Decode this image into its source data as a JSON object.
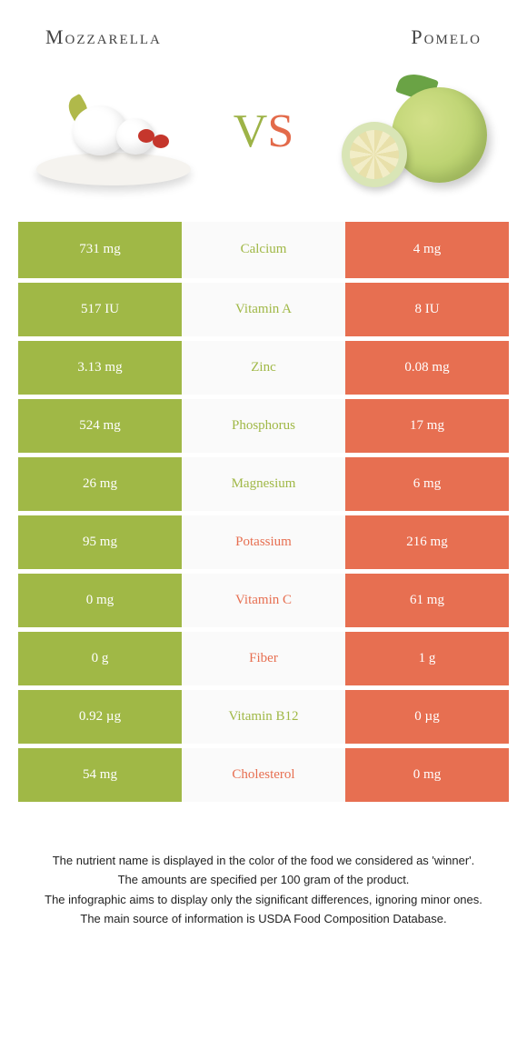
{
  "colors": {
    "left": "#a0b846",
    "right": "#e76f51",
    "mid_bg": "#fafafa"
  },
  "header": {
    "left_title": "Mozzarella",
    "right_title": "Pomelo",
    "vs_v": "V",
    "vs_s": "S"
  },
  "rows": [
    {
      "nutrient": "Calcium",
      "left": "731 mg",
      "right": "4 mg",
      "winner": "left"
    },
    {
      "nutrient": "Vitamin A",
      "left": "517 IU",
      "right": "8 IU",
      "winner": "left"
    },
    {
      "nutrient": "Zinc",
      "left": "3.13 mg",
      "right": "0.08 mg",
      "winner": "left"
    },
    {
      "nutrient": "Phosphorus",
      "left": "524 mg",
      "right": "17 mg",
      "winner": "left"
    },
    {
      "nutrient": "Magnesium",
      "left": "26 mg",
      "right": "6 mg",
      "winner": "left"
    },
    {
      "nutrient": "Potassium",
      "left": "95 mg",
      "right": "216 mg",
      "winner": "right"
    },
    {
      "nutrient": "Vitamin C",
      "left": "0 mg",
      "right": "61 mg",
      "winner": "right"
    },
    {
      "nutrient": "Fiber",
      "left": "0 g",
      "right": "1 g",
      "winner": "right"
    },
    {
      "nutrient": "Vitamin B12",
      "left": "0.92 µg",
      "right": "0 µg",
      "winner": "left"
    },
    {
      "nutrient": "Cholesterol",
      "left": "54 mg",
      "right": "0 mg",
      "winner": "right"
    }
  ],
  "footer": {
    "line1": "The nutrient name is displayed in the color of the food we considered as 'winner'.",
    "line2": "The amounts are specified per 100 gram of the product.",
    "line3": "The infographic aims to display only the significant differences, ignoring minor ones.",
    "line4": "The main source of information is USDA Food Composition Database."
  }
}
